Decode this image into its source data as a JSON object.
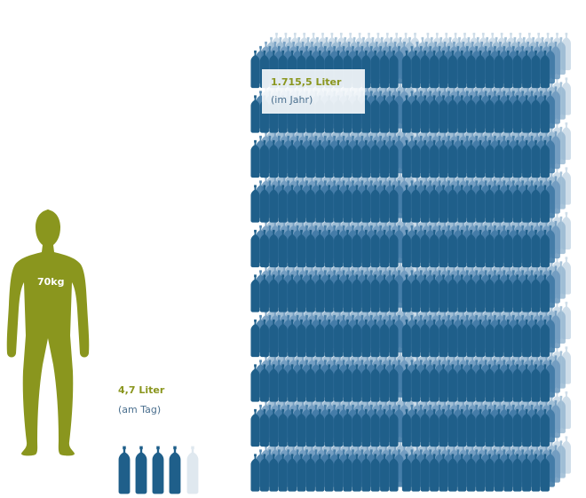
{
  "figure": {
    "weight": "70kg"
  },
  "daily": {
    "amount": "4,7 Liter",
    "period": "(am Tag)"
  },
  "yearly": {
    "amount": "1.715,5 Liter",
    "period": "(im Jahr)"
  }
}
